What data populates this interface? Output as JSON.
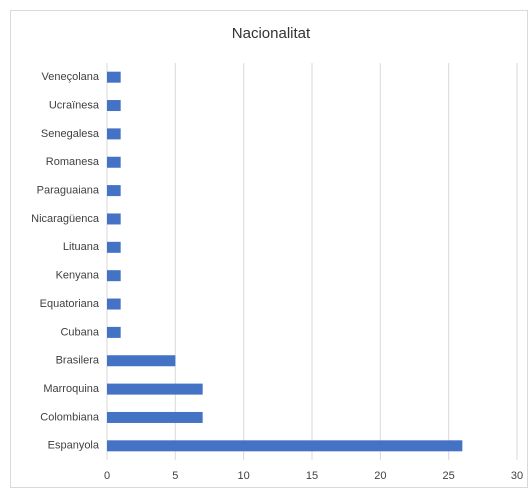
{
  "chart_data": {
    "type": "bar",
    "orientation": "horizontal",
    "title": "Nacionalitat",
    "categories": [
      "Veneçolana",
      "Ucraïnesa",
      "Senegalesa",
      "Romanesa",
      "Paraguaiana",
      "Nicaragüenca",
      "Lituana",
      "Kenyana",
      "Equatoriana",
      "Cubana",
      "Brasilera",
      "Marroquina",
      "Colombiana",
      "Espanyola"
    ],
    "values": [
      1,
      1,
      1,
      1,
      1,
      1,
      1,
      1,
      1,
      1,
      5,
      7,
      7,
      26
    ],
    "color": "#4472c4",
    "xlim": [
      0,
      30
    ],
    "xticks": [
      0,
      5,
      10,
      15,
      20,
      25,
      30
    ],
    "grid": true
  }
}
